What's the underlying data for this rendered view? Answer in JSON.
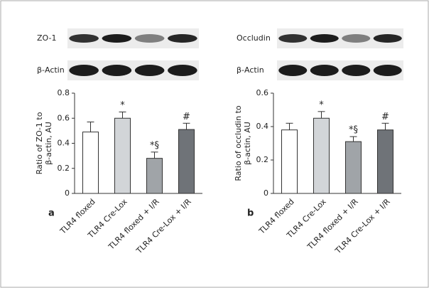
{
  "chart_data": [
    {
      "type": "bar",
      "panel_label": "a",
      "blot_labels": [
        "ZO-1",
        "β-Actin"
      ],
      "ylabel": [
        "Ratio of ZO-1 to",
        "β-actin, AU"
      ],
      "categories": [
        "TLR4 floxed",
        "TLR4 Cre-Lox",
        "TLR4 floxed + I/R",
        "TLR4 Cre-Lox + I/R"
      ],
      "values": [
        0.49,
        0.6,
        0.28,
        0.51
      ],
      "errors": [
        0.08,
        0.05,
        0.05,
        0.05
      ],
      "annotations": [
        null,
        "*",
        "*§",
        "#"
      ],
      "colors": [
        "#ffffff",
        "#d2d5d8",
        "#a0a4a8",
        "#6f7378"
      ],
      "ylim": [
        0,
        0.8
      ],
      "yticks": [
        0,
        0.2,
        0.4,
        0.6,
        0.8
      ]
    },
    {
      "type": "bar",
      "panel_label": "b",
      "blot_labels": [
        "Occludin",
        "β-Actin"
      ],
      "ylabel": [
        "Ratio of occludin to",
        "β-actin, AU"
      ],
      "categories": [
        "TLR4 floxed",
        "TLR4 Cre-Lox",
        "TLR4 floxed + I/R",
        "TLR4 Cre-Lox + I/R"
      ],
      "values": [
        0.38,
        0.45,
        0.31,
        0.38
      ],
      "errors": [
        0.04,
        0.04,
        0.03,
        0.04
      ],
      "annotations": [
        null,
        "*",
        "*§",
        "#"
      ],
      "colors": [
        "#ffffff",
        "#d2d5d8",
        "#a0a4a8",
        "#6f7378"
      ],
      "ylim": [
        0,
        0.6
      ],
      "yticks": [
        0,
        0.2,
        0.4,
        0.6
      ]
    }
  ]
}
